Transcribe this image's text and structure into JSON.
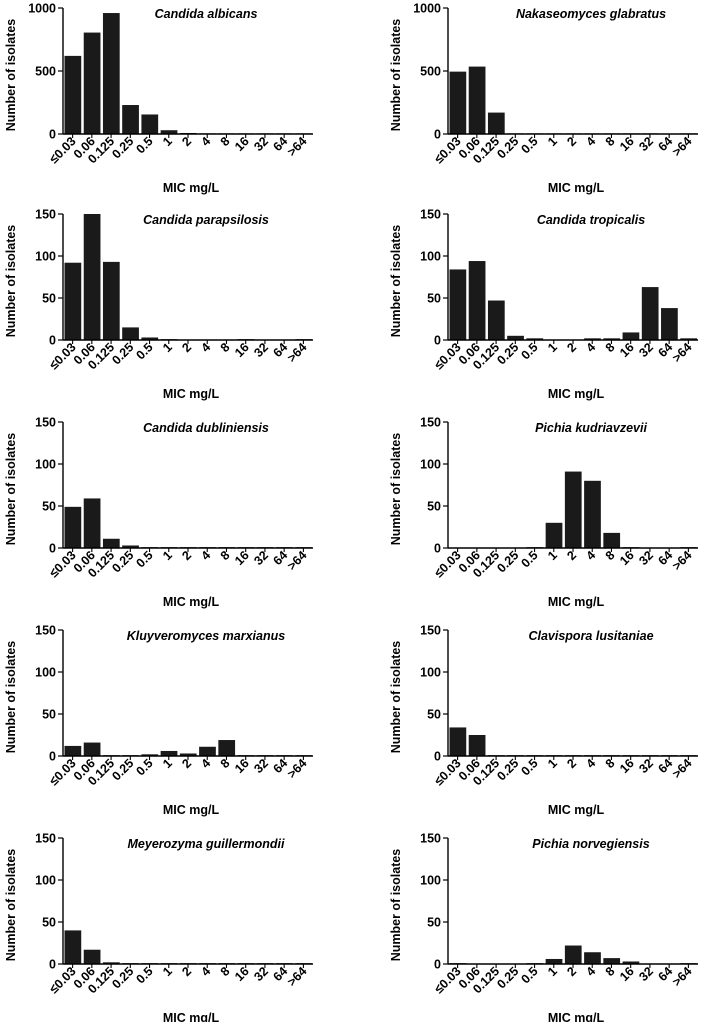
{
  "chart_data": [
    {
      "type": "bar",
      "title": "Candida albicans",
      "xlabel": "MIC mg/L",
      "ylabel": "Number of isolates",
      "ylim": [
        0,
        1000
      ],
      "yticks": [
        0,
        500,
        1000
      ],
      "categories": [
        "≤0.03",
        "0.06",
        "0.125",
        "0.25",
        "0.5",
        "1",
        "2",
        "4",
        "8",
        "16",
        "32",
        "64",
        ">64"
      ],
      "values": [
        620,
        805,
        960,
        230,
        155,
        30,
        8,
        5,
        5,
        5,
        5,
        5,
        5
      ]
    },
    {
      "type": "bar",
      "title": "Nakaseomyces glabratus",
      "xlabel": "MIC mg/L",
      "ylabel": "Number of isolates",
      "ylim": [
        0,
        1000
      ],
      "yticks": [
        0,
        500,
        1000
      ],
      "categories": [
        "≤0.03",
        "0.06",
        "0.125",
        "0.25",
        "0.5",
        "1",
        "2",
        "4",
        "8",
        "16",
        "32",
        "64",
        ">64"
      ],
      "values": [
        495,
        535,
        170,
        5,
        5,
        5,
        5,
        5,
        5,
        5,
        5,
        0,
        5
      ]
    },
    {
      "type": "bar",
      "title": "Candida parapsilosis",
      "xlabel": "MIC mg/L",
      "ylabel": "Number of isolates",
      "ylim": [
        0,
        150
      ],
      "yticks": [
        0,
        50,
        100,
        150
      ],
      "categories": [
        "≤0.03",
        "0.06",
        "0.125",
        "0.25",
        "0.5",
        "1",
        "2",
        "4",
        "8",
        "16",
        "32",
        "64",
        ">64"
      ],
      "values": [
        92,
        150,
        93,
        15,
        3,
        1,
        0,
        0,
        0,
        1,
        0,
        0,
        1
      ]
    },
    {
      "type": "bar",
      "title": "Candida tropicalis",
      "xlabel": "MIC mg/L",
      "ylabel": "Number of isolates",
      "ylim": [
        0,
        150
      ],
      "yticks": [
        0,
        50,
        100,
        150
      ],
      "categories": [
        "≤0.03",
        "0.06",
        "0.125",
        "0.25",
        "0.5",
        "1",
        "2",
        "4",
        "8",
        "16",
        "32",
        "64",
        ">64"
      ],
      "values": [
        84,
        94,
        47,
        5,
        2,
        0,
        0,
        2,
        2,
        9,
        63,
        38,
        2
      ]
    },
    {
      "type": "bar",
      "title": "Candida dubliniensis",
      "xlabel": "MIC mg/L",
      "ylabel": "Number of isolates",
      "ylim": [
        0,
        150
      ],
      "yticks": [
        0,
        50,
        100,
        150
      ],
      "categories": [
        "≤0.03",
        "0.06",
        "0.125",
        "0.25",
        "0.5",
        "1",
        "2",
        "4",
        "8",
        "16",
        "32",
        "64",
        ">64"
      ],
      "values": [
        49,
        59,
        11,
        3,
        1,
        1,
        1,
        1,
        1,
        1,
        1,
        1,
        1
      ]
    },
    {
      "type": "bar",
      "title": "Pichia kudriavzevii",
      "xlabel": "MIC mg/L",
      "ylabel": "Number of isolates",
      "ylim": [
        0,
        150
      ],
      "yticks": [
        0,
        50,
        100,
        150
      ],
      "categories": [
        "≤0.03",
        "0.06",
        "0.125",
        "0.25",
        "0.5",
        "1",
        "2",
        "4",
        "8",
        "16",
        "32",
        "64",
        ">64"
      ],
      "values": [
        0,
        0,
        0,
        0,
        1,
        30,
        91,
        80,
        18,
        1,
        0,
        0,
        1
      ]
    },
    {
      "type": "bar",
      "title": "Kluyveromyces marxianus",
      "xlabel": "MIC mg/L",
      "ylabel": "Number of isolates",
      "ylim": [
        0,
        150
      ],
      "yticks": [
        0,
        50,
        100,
        150
      ],
      "categories": [
        "≤0.03",
        "0.06",
        "0.125",
        "0.25",
        "0.5",
        "1",
        "2",
        "4",
        "8",
        "16",
        "32",
        "64",
        ">64"
      ],
      "values": [
        12,
        16,
        1,
        1,
        2,
        6,
        3,
        11,
        19,
        1,
        1,
        1,
        1
      ]
    },
    {
      "type": "bar",
      "title": "Clavispora lusitaniae",
      "xlabel": "MIC mg/L",
      "ylabel": "Number of isolates",
      "ylim": [
        0,
        150
      ],
      "yticks": [
        0,
        50,
        100,
        150
      ],
      "categories": [
        "≤0.03",
        "0.06",
        "0.125",
        "0.25",
        "0.5",
        "1",
        "2",
        "4",
        "8",
        "16",
        "32",
        "64",
        ">64"
      ],
      "values": [
        34,
        25,
        1,
        1,
        1,
        1,
        1,
        1,
        1,
        1,
        1,
        1,
        1
      ]
    },
    {
      "type": "bar",
      "title": "Meyerozyma guillermondii",
      "xlabel": "MIC mg/L",
      "ylabel": "Number of isolates",
      "ylim": [
        0,
        150
      ],
      "yticks": [
        0,
        50,
        100,
        150
      ],
      "categories": [
        "≤0.03",
        "0.06",
        "0.125",
        "0.25",
        "0.5",
        "1",
        "2",
        "4",
        "8",
        "16",
        "32",
        "64",
        ">64"
      ],
      "values": [
        40,
        17,
        2,
        1,
        1,
        1,
        1,
        1,
        1,
        1,
        1,
        1,
        1
      ]
    },
    {
      "type": "bar",
      "title": "Pichia norvegiensis",
      "xlabel": "MIC mg/L",
      "ylabel": "Number of isolates",
      "ylim": [
        0,
        150
      ],
      "yticks": [
        0,
        50,
        100,
        150
      ],
      "categories": [
        "≤0.03",
        "0.06",
        "0.125",
        "0.25",
        "0.5",
        "1",
        "2",
        "4",
        "8",
        "16",
        "32",
        "64",
        ">64"
      ],
      "values": [
        1,
        0,
        0,
        0,
        1,
        6,
        22,
        14,
        7,
        3,
        0,
        0,
        1
      ]
    }
  ]
}
